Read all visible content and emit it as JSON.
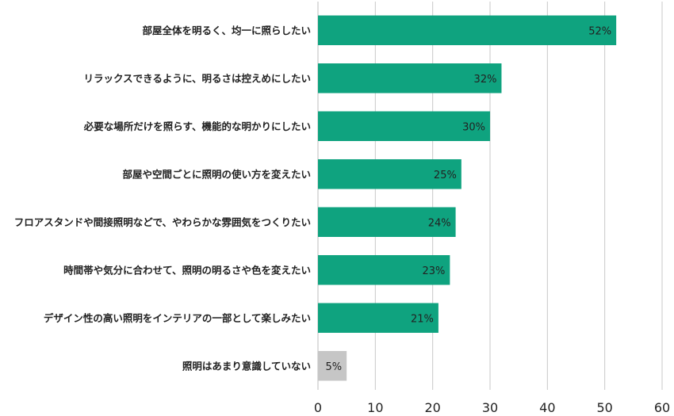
{
  "chart_data": {
    "type": "bar",
    "orientation": "horizontal",
    "categories": [
      "部屋全体を明るく、均一に照らしたい",
      "リラックスできるように、明るさは控えめにしたい",
      "必要な場所だけを照らす、機能的な明かりにしたい",
      "部屋や空間ごとに照明の使い方を変えたい",
      "フロアスタンドや間接照明などで、やわらかな雰囲気をつくりたい",
      "時間帯や気分に合わせて、照明の明るさや色を変えたい",
      "デザイン性の高い照明をインテリアの一部として楽しみたい",
      "照明はあまり意識していない"
    ],
    "values": [
      52,
      32,
      30,
      25,
      24,
      23,
      21,
      5
    ],
    "value_labels": [
      "52%",
      "32%",
      "30%",
      "25%",
      "24%",
      "23%",
      "21%",
      "5%"
    ],
    "bar_colors": [
      "#0fa37f",
      "#0fa37f",
      "#0fa37f",
      "#0fa37f",
      "#0fa37f",
      "#0fa37f",
      "#0fa37f",
      "#c6c6c6"
    ],
    "xlim": [
      0,
      60
    ],
    "xticks": [
      0,
      10,
      20,
      30,
      40,
      50,
      60
    ],
    "grid": true,
    "title": "",
    "xlabel": "",
    "ylabel": ""
  }
}
